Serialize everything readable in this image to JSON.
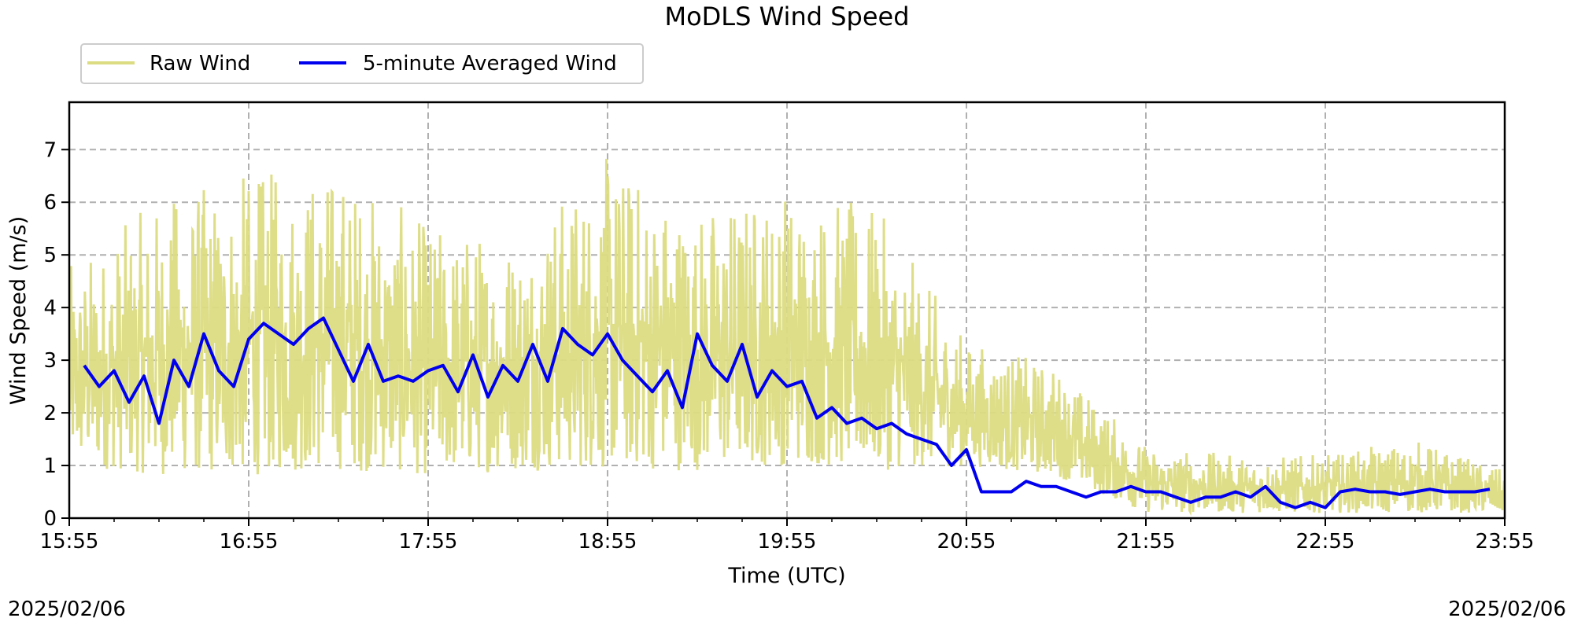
{
  "chart_data": {
    "type": "line",
    "title": "MoDLS Wind Speed",
    "xlabel": "Time (UTC)",
    "ylabel": "Wind Speed (m/s)",
    "xlim": [
      "15:55",
      "23:55"
    ],
    "ylim": [
      0,
      7.9
    ],
    "x_ticks": [
      "15:55",
      "16:55",
      "17:55",
      "18:55",
      "19:55",
      "20:55",
      "21:55",
      "22:55",
      "23:55"
    ],
    "y_ticks": [
      0,
      1,
      2,
      3,
      4,
      5,
      6,
      7
    ],
    "grid": true,
    "legend": "top-left",
    "date_start": "2025/02/06",
    "date_end": "2025/02/06",
    "series": [
      {
        "name": "Raw Wind",
        "color": "#dcdc82",
        "style": "noisy raw samples",
        "x": [
          "15:55",
          "16:25",
          "16:55",
          "17:25",
          "17:55",
          "18:25",
          "18:55",
          "19:25",
          "19:55",
          "20:25",
          "20:55",
          "21:25",
          "21:55",
          "22:25",
          "22:55",
          "23:25",
          "23:55"
        ],
        "y_low": [
          1.0,
          0.8,
          0.8,
          0.9,
          0.8,
          0.9,
          0.9,
          0.9,
          1.0,
          0.9,
          1.0,
          0.8,
          0.1,
          0.1,
          0.1,
          0.1,
          0.1
        ],
        "y_high": [
          4.8,
          6.1,
          6.6,
          6.7,
          5.6,
          5.5,
          6.9,
          6.0,
          6.4,
          5.9,
          3.4,
          2.9,
          1.4,
          1.2,
          1.2,
          1.5,
          0.9
        ]
      },
      {
        "name": "5-minute Averaged Wind",
        "color": "#0000ee",
        "x": [
          "16:00",
          "16:05",
          "16:10",
          "16:15",
          "16:20",
          "16:25",
          "16:30",
          "16:35",
          "16:40",
          "16:45",
          "16:50",
          "16:55",
          "17:00",
          "17:05",
          "17:10",
          "17:15",
          "17:20",
          "17:25",
          "17:30",
          "17:35",
          "17:40",
          "17:45",
          "17:50",
          "17:55",
          "18:00",
          "18:05",
          "18:10",
          "18:15",
          "18:20",
          "18:25",
          "18:30",
          "18:35",
          "18:40",
          "18:45",
          "18:50",
          "18:55",
          "19:00",
          "19:05",
          "19:10",
          "19:15",
          "19:20",
          "19:25",
          "19:30",
          "19:35",
          "19:40",
          "19:45",
          "19:50",
          "19:55",
          "20:00",
          "20:05",
          "20:10",
          "20:15",
          "20:20",
          "20:25",
          "20:30",
          "20:35",
          "20:40",
          "20:45",
          "20:50",
          "20:55",
          "21:00",
          "21:05",
          "21:10",
          "21:15",
          "21:20",
          "21:25",
          "21:30",
          "21:35",
          "21:40",
          "21:45",
          "21:50",
          "21:55",
          "22:00",
          "22:05",
          "22:10",
          "22:15",
          "22:20",
          "22:25",
          "22:30",
          "22:35",
          "22:40",
          "22:45",
          "22:50",
          "22:55",
          "23:00",
          "23:05",
          "23:10",
          "23:15",
          "23:20",
          "23:25",
          "23:30",
          "23:35",
          "23:40",
          "23:45",
          "23:50"
        ],
        "y": [
          2.9,
          2.5,
          2.8,
          2.2,
          2.7,
          1.8,
          3.0,
          2.5,
          3.5,
          2.8,
          2.5,
          3.4,
          3.7,
          3.5,
          3.3,
          3.6,
          3.8,
          3.2,
          2.6,
          3.3,
          2.6,
          2.7,
          2.6,
          2.8,
          2.9,
          2.4,
          3.1,
          2.3,
          2.9,
          2.6,
          3.3,
          2.6,
          3.6,
          3.3,
          3.1,
          3.5,
          3.0,
          2.7,
          2.4,
          2.8,
          2.1,
          3.5,
          2.9,
          2.6,
          3.3,
          2.3,
          2.8,
          2.5,
          2.6,
          1.9,
          2.1,
          1.8,
          1.9,
          1.7,
          1.8,
          1.6,
          1.5,
          1.4,
          1.0,
          1.3,
          0.5,
          0.5,
          0.5,
          0.7,
          0.6,
          0.6,
          0.5,
          0.4,
          0.5,
          0.5,
          0.6,
          0.5,
          0.5,
          0.4,
          0.3,
          0.4,
          0.4,
          0.5,
          0.4,
          0.6,
          0.3,
          0.2,
          0.3,
          0.2,
          0.5,
          0.55,
          0.5,
          0.5,
          0.45,
          0.5,
          0.55,
          0.5,
          0.5,
          0.5,
          0.55
        ]
      }
    ]
  }
}
